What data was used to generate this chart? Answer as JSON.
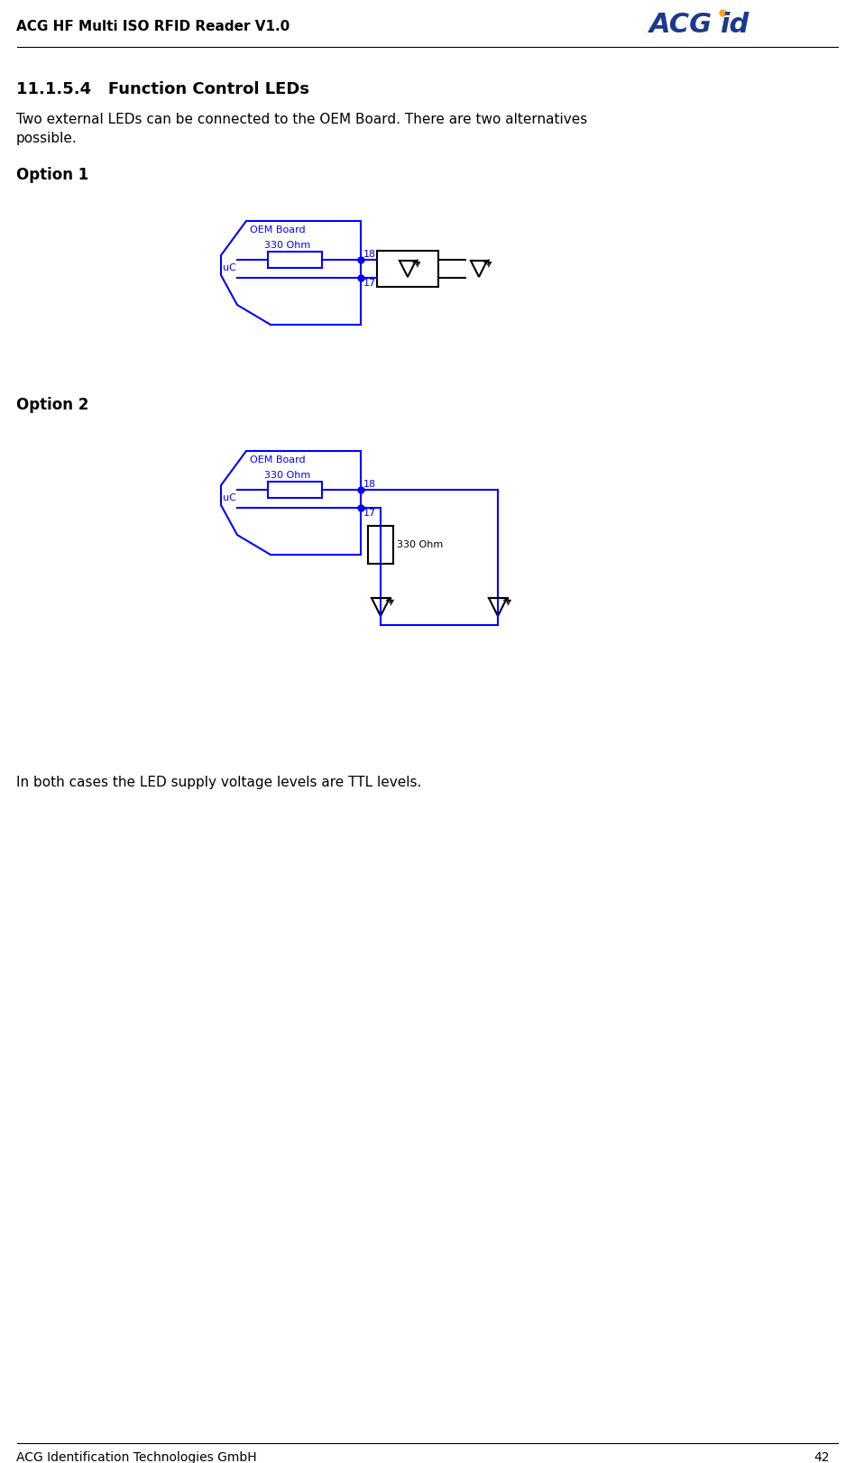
{
  "header_text": "ACG HF Multi ISO RFID Reader V1.0",
  "footer_text": "ACG Identification Technologies GmbH",
  "page_number": "42",
  "section_title": "11.1.5.4   Function Control LEDs",
  "body_text1": "Two external LEDs can be connected to the OEM Board. There are two alternatives\npossible.",
  "option1_label": "Option 1",
  "option2_label": "Option 2",
  "footer_note": "In both cases the LED supply voltage levels are TTL levels.",
  "blue_color": "#0000FF",
  "black_color": "#000000",
  "bg_color": "#FFFFFF",
  "acg_blue": "#1B3A8C",
  "acg_orange": "#F5A623"
}
